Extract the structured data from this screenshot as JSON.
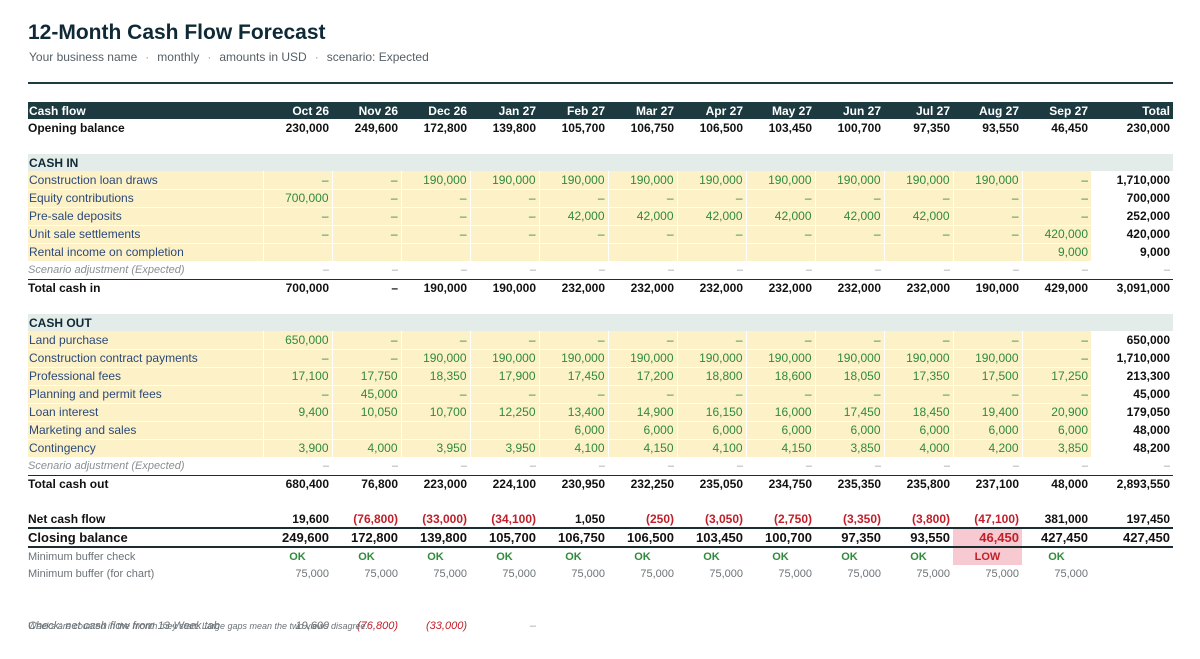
{
  "header": {
    "title": "12-Month Cash Flow Forecast",
    "subtitle_parts": [
      "Your business name",
      "monthly",
      "amounts in USD",
      "scenario: Expected"
    ],
    "separator": "·"
  },
  "table": {
    "label_header": "Cash flow",
    "months": [
      "Oct 26",
      "Nov 26",
      "Dec 26",
      "Jan 27",
      "Feb 27",
      "Mar 27",
      "Apr 27",
      "May 27",
      "Jun 27",
      "Jul 27",
      "Aug 27",
      "Sep 27"
    ],
    "total_header": "Total",
    "opening": {
      "label": "Opening balance",
      "values": [
        "230,000",
        "249,600",
        "172,800",
        "139,800",
        "105,700",
        "106,750",
        "106,500",
        "103,450",
        "100,700",
        "97,350",
        "93,550",
        "46,450"
      ],
      "total": "230,000"
    },
    "cash_in": {
      "section_label": "CASH IN",
      "rows": [
        {
          "label": "Construction loan draws",
          "values": [
            "–",
            "–",
            "190,000",
            "190,000",
            "190,000",
            "190,000",
            "190,000",
            "190,000",
            "190,000",
            "190,000",
            "190,000",
            "–"
          ],
          "total": "1,710,000"
        },
        {
          "label": "Equity contributions",
          "values": [
            "700,000",
            "–",
            "–",
            "–",
            "–",
            "–",
            "–",
            "–",
            "–",
            "–",
            "–",
            "–"
          ],
          "total": "700,000"
        },
        {
          "label": "Pre-sale deposits",
          "values": [
            "–",
            "–",
            "–",
            "–",
            "42,000",
            "42,000",
            "42,000",
            "42,000",
            "42,000",
            "42,000",
            "–",
            "–"
          ],
          "total": "252,000"
        },
        {
          "label": "Unit sale settlements",
          "values": [
            "–",
            "–",
            "–",
            "–",
            "–",
            "–",
            "–",
            "–",
            "–",
            "–",
            "–",
            "420,000"
          ],
          "total": "420,000"
        },
        {
          "label": "Rental income on completion",
          "values": [
            "",
            "",
            "",
            "",
            "",
            "",
            "",
            "",
            "",
            "",
            "",
            "9,000"
          ],
          "total": "9,000"
        }
      ],
      "adjustment": {
        "label": "Scenario adjustment (Expected)",
        "values": [
          "–",
          "–",
          "–",
          "–",
          "–",
          "–",
          "–",
          "–",
          "–",
          "–",
          "–",
          "–"
        ],
        "total": "–"
      },
      "total": {
        "label": "Total cash in",
        "values": [
          "700,000",
          "–",
          "190,000",
          "190,000",
          "232,000",
          "232,000",
          "232,000",
          "232,000",
          "232,000",
          "232,000",
          "190,000",
          "429,000"
        ],
        "total": "3,091,000"
      }
    },
    "cash_out": {
      "section_label": "CASH OUT",
      "rows": [
        {
          "label": "Land purchase",
          "values": [
            "650,000",
            "–",
            "–",
            "–",
            "–",
            "–",
            "–",
            "–",
            "–",
            "–",
            "–",
            "–"
          ],
          "total": "650,000"
        },
        {
          "label": "Construction contract payments",
          "values": [
            "–",
            "–",
            "190,000",
            "190,000",
            "190,000",
            "190,000",
            "190,000",
            "190,000",
            "190,000",
            "190,000",
            "190,000",
            "–"
          ],
          "total": "1,710,000"
        },
        {
          "label": "Professional fees",
          "values": [
            "17,100",
            "17,750",
            "18,350",
            "17,900",
            "17,450",
            "17,200",
            "18,800",
            "18,600",
            "18,050",
            "17,350",
            "17,500",
            "17,250"
          ],
          "total": "213,300"
        },
        {
          "label": "Planning and permit fees",
          "values": [
            "–",
            "45,000",
            "–",
            "–",
            "–",
            "–",
            "–",
            "–",
            "–",
            "–",
            "–",
            "–"
          ],
          "total": "45,000"
        },
        {
          "label": "Loan interest",
          "values": [
            "9,400",
            "10,050",
            "10,700",
            "12,250",
            "13,400",
            "14,900",
            "16,150",
            "16,000",
            "17,450",
            "18,450",
            "19,400",
            "20,900"
          ],
          "total": "179,050"
        },
        {
          "label": "Marketing and sales",
          "values": [
            "",
            "",
            "",
            "",
            "6,000",
            "6,000",
            "6,000",
            "6,000",
            "6,000",
            "6,000",
            "6,000",
            "6,000"
          ],
          "total": "48,000"
        },
        {
          "label": "Contingency",
          "values": [
            "3,900",
            "4,000",
            "3,950",
            "3,950",
            "4,100",
            "4,150",
            "4,100",
            "4,150",
            "3,850",
            "4,000",
            "4,200",
            "3,850"
          ],
          "total": "48,200"
        }
      ],
      "adjustment": {
        "label": "Scenario adjustment (Expected)",
        "values": [
          "–",
          "–",
          "–",
          "–",
          "–",
          "–",
          "–",
          "–",
          "–",
          "–",
          "–",
          "–"
        ],
        "total": "–"
      },
      "total": {
        "label": "Total cash out",
        "values": [
          "680,400",
          "76,800",
          "223,000",
          "224,100",
          "230,950",
          "232,250",
          "235,050",
          "234,750",
          "235,350",
          "235,800",
          "237,100",
          "48,000"
        ],
        "total": "2,893,550"
      }
    },
    "net": {
      "label": "Net cash flow",
      "values": [
        "19,600",
        "(76,800)",
        "(33,000)",
        "(34,100)",
        "1,050",
        "(250)",
        "(3,050)",
        "(2,750)",
        "(3,350)",
        "(3,800)",
        "(47,100)",
        "381,000"
      ],
      "total": "197,450"
    },
    "closing": {
      "label": "Closing balance",
      "values": [
        "249,600",
        "172,800",
        "139,800",
        "105,700",
        "106,750",
        "106,500",
        "103,450",
        "100,700",
        "97,350",
        "93,550",
        "46,450",
        "427,450"
      ],
      "total": "427,450",
      "low_index": 10
    },
    "buffer_check": {
      "label": "Minimum buffer check",
      "values": [
        "OK",
        "OK",
        "OK",
        "OK",
        "OK",
        "OK",
        "OK",
        "OK",
        "OK",
        "OK",
        "LOW",
        "OK"
      ]
    },
    "buffer_chart": {
      "label": "Minimum buffer (for chart)",
      "values": [
        "75,000",
        "75,000",
        "75,000",
        "75,000",
        "75,000",
        "75,000",
        "75,000",
        "75,000",
        "75,000",
        "75,000",
        "75,000",
        "75,000"
      ]
    },
    "check": {
      "label": "Check: net cash flow from 13-Week tab",
      "values": [
        "19,600",
        "(76,800)",
        "(33,000)",
        "–"
      ]
    }
  },
  "footnote": "Weeks are counted in the month they start. Large gaps mean the two views disagree.",
  "colors": {
    "header_bg": "#1c3a40",
    "section_bg": "#e3ece8",
    "input_bg": "#fdf1c8",
    "input_text": "#2f8a3c",
    "label_text": "#2b4a7a",
    "negative": "#c0202a",
    "low_bg": "#f7c9d0"
  }
}
